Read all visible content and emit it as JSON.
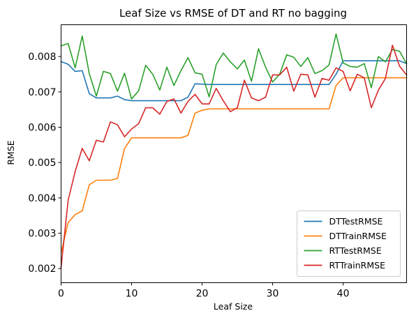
{
  "chart_data": {
    "type": "line",
    "title": "Leaf Size vs RMSE of DT and RT no bagging",
    "xlabel": "Leaf Size",
    "ylabel": "RMSE",
    "xlim": [
      0,
      49
    ],
    "ylim": [
      0.0016,
      0.0089
    ],
    "x_ticks": [
      0,
      10,
      20,
      30,
      40
    ],
    "y_ticks": [
      0.002,
      0.003,
      0.004,
      0.005,
      0.006,
      0.007,
      0.008
    ],
    "y_tick_labels": [
      "0.002",
      "0.003",
      "0.004",
      "0.005",
      "0.006",
      "0.007",
      "0.008"
    ],
    "legend_position": "lower-right",
    "grid": false,
    "x": [
      0,
      1,
      2,
      3,
      4,
      5,
      6,
      7,
      8,
      9,
      10,
      11,
      12,
      13,
      14,
      15,
      16,
      17,
      18,
      19,
      20,
      21,
      22,
      23,
      24,
      25,
      26,
      27,
      28,
      29,
      30,
      31,
      32,
      33,
      34,
      35,
      36,
      37,
      38,
      39,
      40,
      41,
      42,
      43,
      44,
      45,
      46,
      47,
      48,
      49
    ],
    "series": [
      {
        "name": "DTTestRMSE",
        "color": "#1f77b4",
        "values": [
          0.00786,
          0.00778,
          0.00758,
          0.0076,
          0.00695,
          0.00683,
          0.00683,
          0.00683,
          0.00688,
          0.00678,
          0.00675,
          0.00675,
          0.00675,
          0.00675,
          0.00675,
          0.00675,
          0.00675,
          0.00675,
          0.00685,
          0.00723,
          0.00722,
          0.00721,
          0.00721,
          0.00721,
          0.00721,
          0.00721,
          0.00721,
          0.00721,
          0.00721,
          0.00721,
          0.00721,
          0.00721,
          0.00721,
          0.00721,
          0.00721,
          0.00721,
          0.00721,
          0.00721,
          0.00721,
          0.0075,
          0.00788,
          0.00788,
          0.00788,
          0.00788,
          0.00788,
          0.00788,
          0.00788,
          0.00788,
          0.00788,
          0.0078
        ]
      },
      {
        "name": "DTTrainRMSE",
        "color": "#ff7f0e",
        "values": [
          0.00245,
          0.0033,
          0.00353,
          0.00363,
          0.00437,
          0.0045,
          0.0045,
          0.0045,
          0.00455,
          0.0054,
          0.0057,
          0.0057,
          0.0057,
          0.0057,
          0.0057,
          0.0057,
          0.0057,
          0.0057,
          0.00577,
          0.0064,
          0.00648,
          0.00652,
          0.00652,
          0.00652,
          0.00652,
          0.00652,
          0.00652,
          0.00652,
          0.00652,
          0.00652,
          0.00652,
          0.00652,
          0.00652,
          0.00652,
          0.00652,
          0.00652,
          0.00652,
          0.00652,
          0.00652,
          0.00718,
          0.0074,
          0.0074,
          0.0074,
          0.0074,
          0.0074,
          0.0074,
          0.0074,
          0.0074,
          0.0074,
          0.0074
        ]
      },
      {
        "name": "RTTestRMSE",
        "color": "#2ca02c",
        "values": [
          0.0083,
          0.00837,
          0.00768,
          0.00858,
          0.00752,
          0.00688,
          0.00758,
          0.00752,
          0.00702,
          0.00753,
          0.0068,
          0.00703,
          0.00775,
          0.0075,
          0.00705,
          0.0077,
          0.00718,
          0.0076,
          0.00797,
          0.00754,
          0.0075,
          0.00686,
          0.00777,
          0.0081,
          0.00785,
          0.00765,
          0.0079,
          0.0073,
          0.00822,
          0.0077,
          0.00728,
          0.0075,
          0.00805,
          0.00798,
          0.00772,
          0.00797,
          0.00752,
          0.0076,
          0.00776,
          0.00864,
          0.00782,
          0.00772,
          0.0077,
          0.0078,
          0.00712,
          0.008,
          0.00785,
          0.0082,
          0.00815,
          0.0078
        ]
      },
      {
        "name": "RTTrainRMSE",
        "color": "#d62728",
        "values": [
          0.00203,
          0.00393,
          0.00475,
          0.0054,
          0.00505,
          0.00563,
          0.00558,
          0.00615,
          0.00607,
          0.00573,
          0.00595,
          0.0061,
          0.00655,
          0.00655,
          0.00637,
          0.00673,
          0.0068,
          0.0064,
          0.00673,
          0.00693,
          0.00666,
          0.00666,
          0.0071,
          0.00675,
          0.00644,
          0.00655,
          0.00733,
          0.00683,
          0.00675,
          0.00685,
          0.00748,
          0.00748,
          0.0077,
          0.00702,
          0.0075,
          0.00748,
          0.00685,
          0.00738,
          0.00733,
          0.00768,
          0.00758,
          0.00703,
          0.0075,
          0.0074,
          0.00655,
          0.00705,
          0.00738,
          0.00832,
          0.00773,
          0.00748
        ]
      }
    ]
  }
}
